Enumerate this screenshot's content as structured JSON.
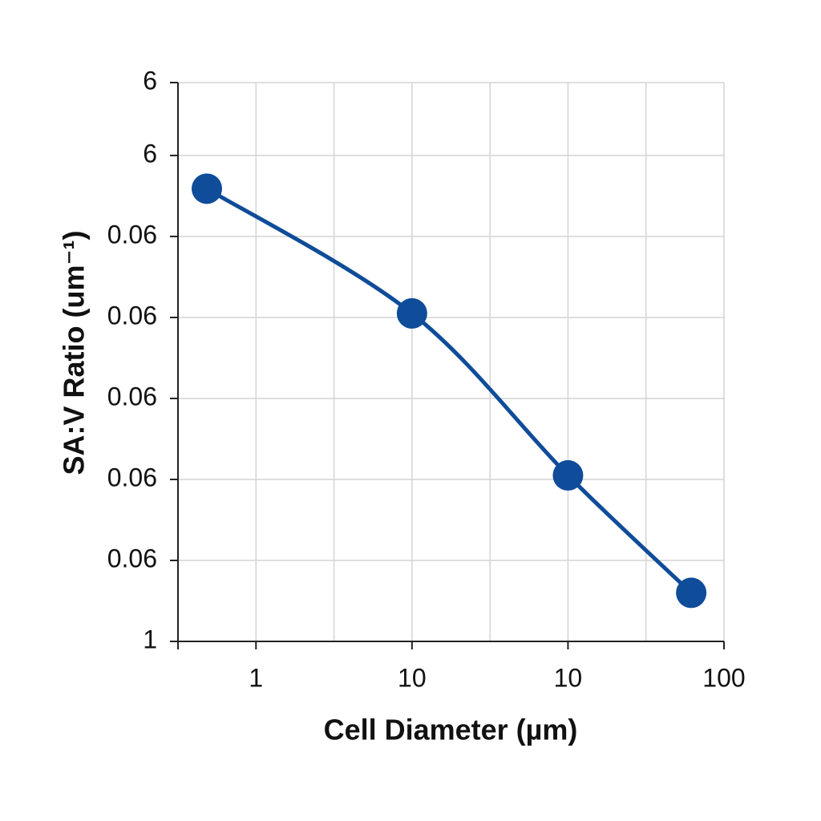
{
  "chart_data": {
    "type": "line",
    "xlabel": "Cell Diameter (µm)",
    "ylabel": "SA:V Ratio (um⁻¹)",
    "x": [
      0.37,
      3,
      5,
      6.58
    ],
    "series": [
      {
        "name": "SA:V Ratio",
        "color": "#0f4c99",
        "values": [
          5.59,
          4.05,
          2.05,
          0.6
        ]
      }
    ],
    "xlim": [
      0,
      7
    ],
    "xticks": [
      1,
      {
        "value": 3,
        "label": "10"
      },
      {
        "value": 5,
        "label": "10"
      },
      {
        "value": 7,
        "label": "100"
      }
    ],
    "xgrid": [
      1,
      2,
      3,
      4,
      5,
      6,
      7
    ],
    "ylim": [
      0,
      6.9
    ],
    "yticks": [
      {
        "value": 0,
        "label": "1"
      },
      {
        "value": 1,
        "label": "0.06"
      },
      {
        "value": 2,
        "label": "0.06"
      },
      {
        "value": 3,
        "label": "0.06"
      },
      {
        "value": 4,
        "label": "0.06"
      },
      {
        "value": 5,
        "label": "0.06"
      },
      6,
      {
        "value": 6.9,
        "label": "6"
      }
    ],
    "grid": true
  }
}
